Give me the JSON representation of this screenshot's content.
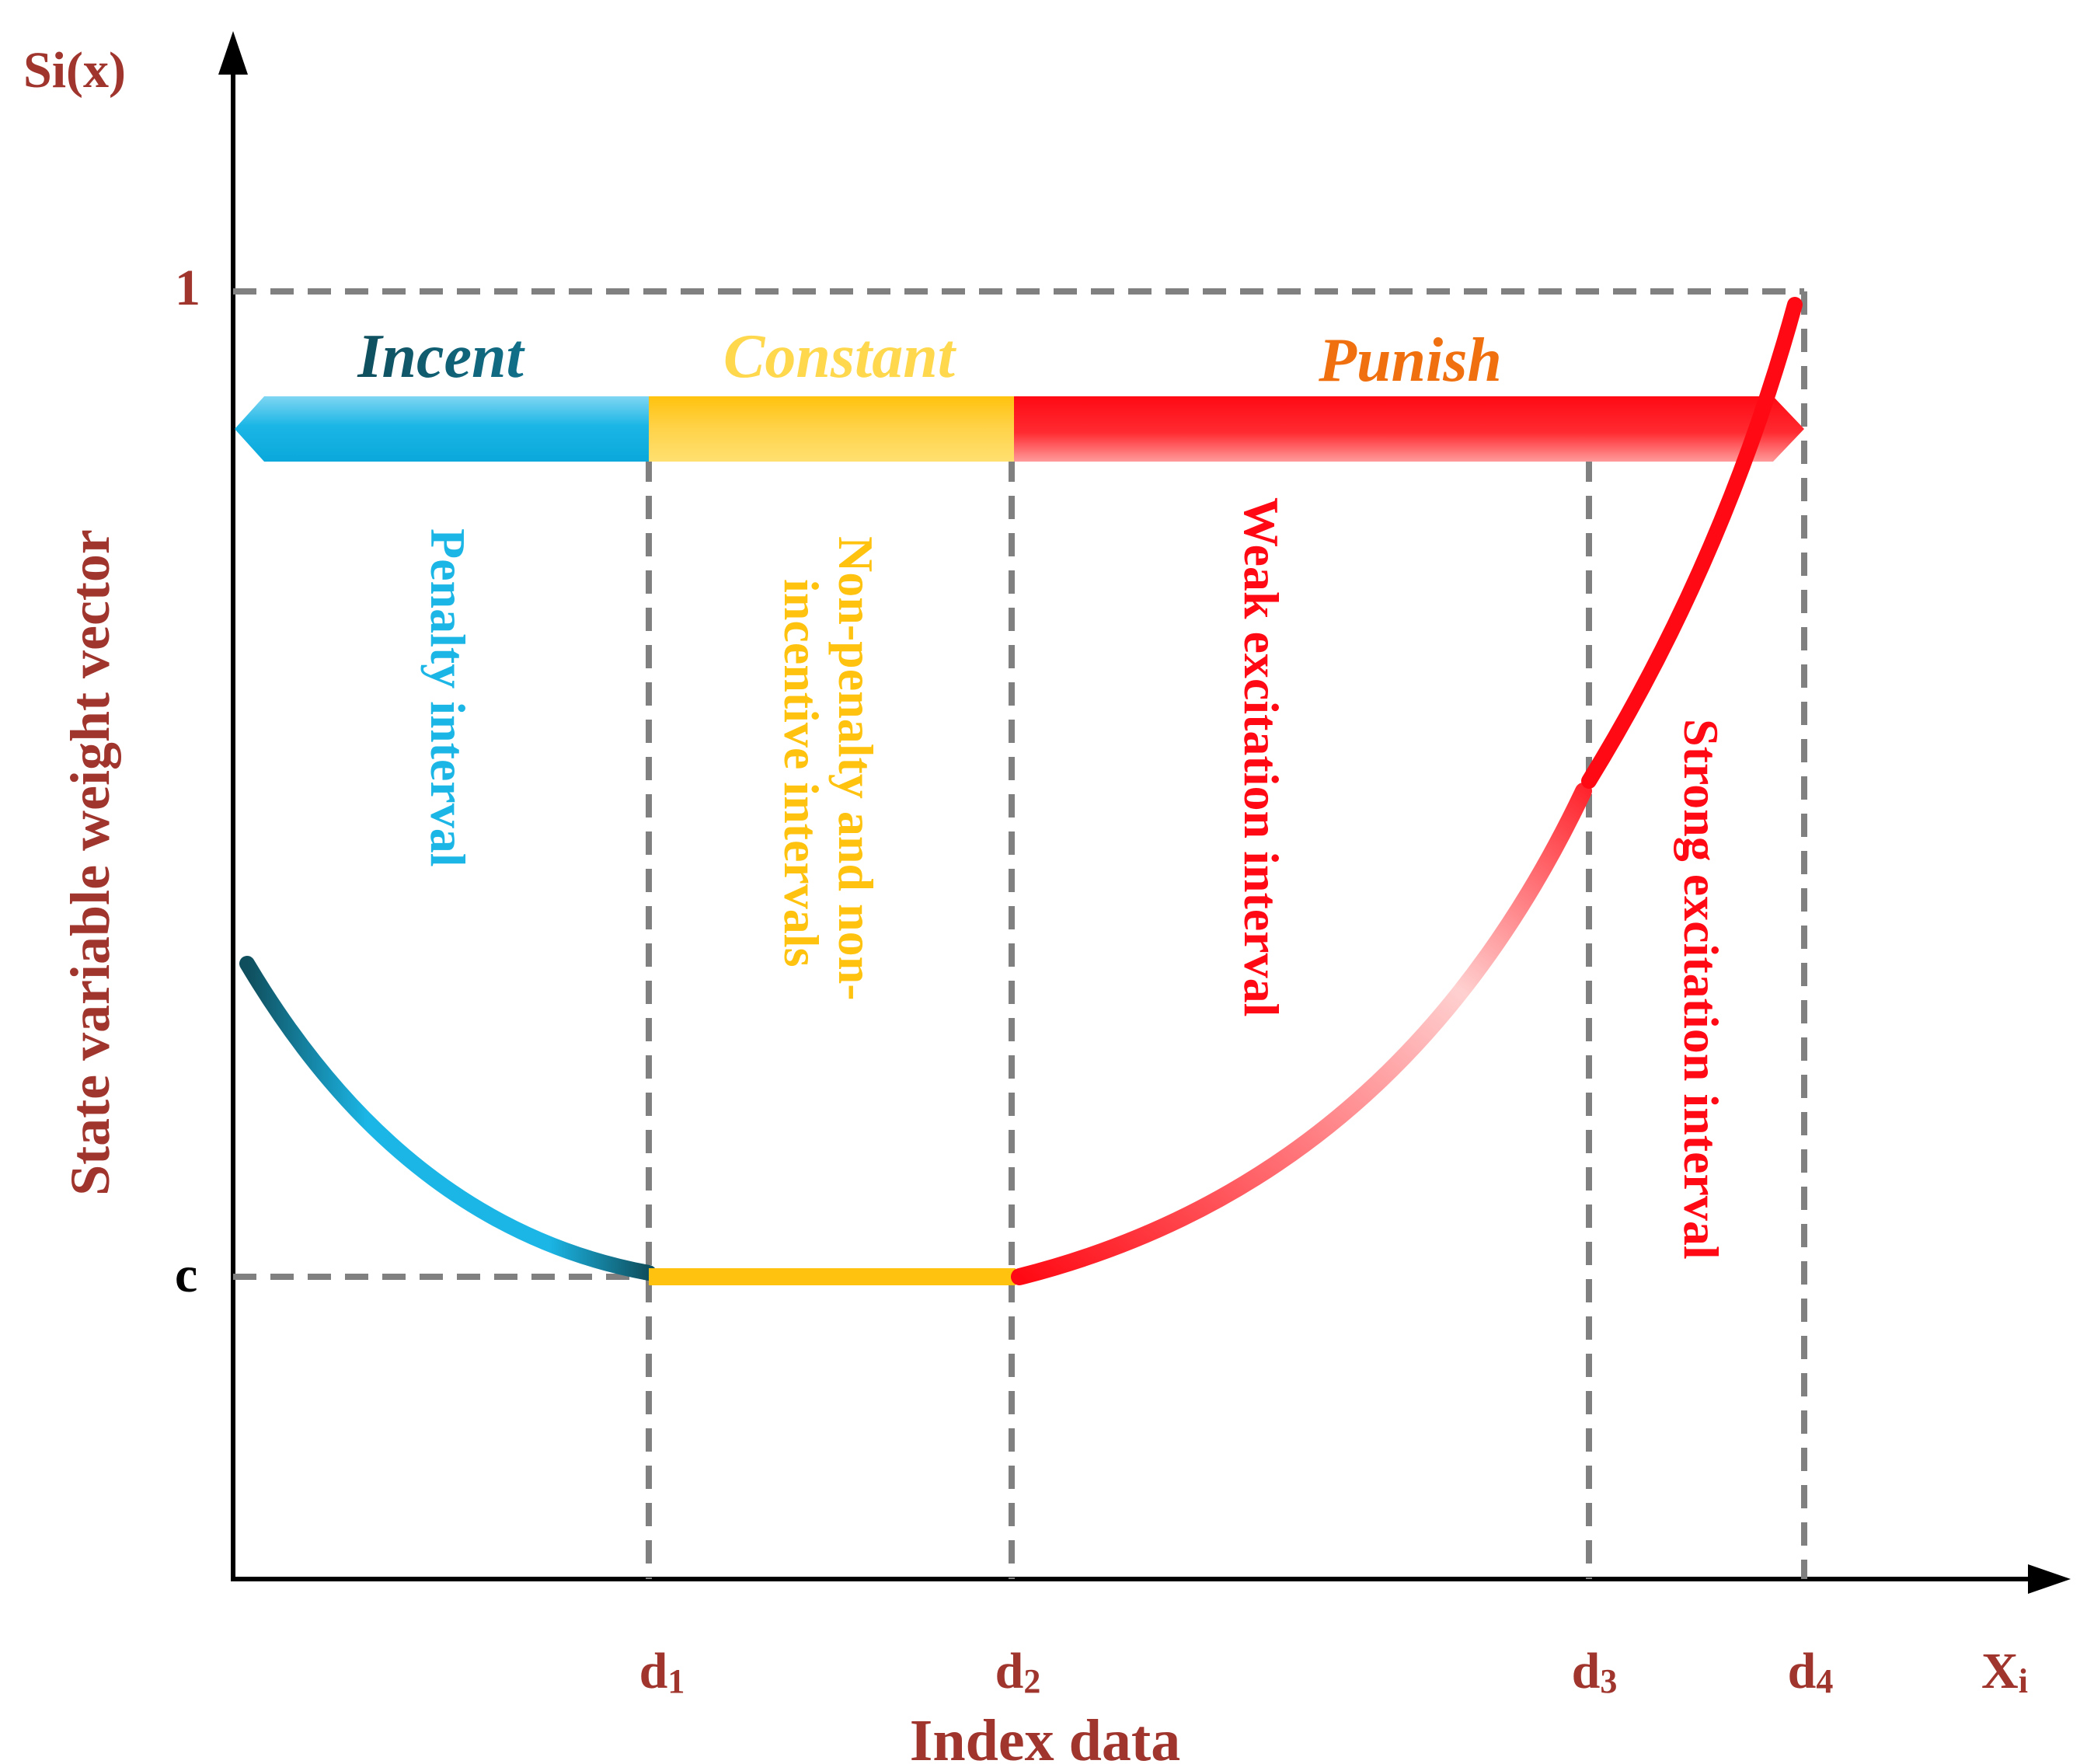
{
  "axes": {
    "y_axis_symbol": "Si(x)",
    "y_axis_label": "State variable weight vector",
    "x_axis_symbol_base": "X",
    "x_axis_symbol_sub": "i",
    "x_axis_label": "Index data",
    "y_tick_one": "1",
    "y_tick_c": "c",
    "x_ticks": [
      {
        "base": "d",
        "sub": "1"
      },
      {
        "base": "d",
        "sub": "2"
      },
      {
        "base": "d",
        "sub": "3"
      },
      {
        "base": "d",
        "sub": "4"
      }
    ]
  },
  "bands": {
    "incent": "Incent",
    "constant": "Constant",
    "punish": "Punish"
  },
  "intervals": {
    "penalty": [
      "Penalty interval"
    ],
    "neutral": [
      "Non-penalty and non-",
      "incentive intervals"
    ],
    "weak": [
      "Weak excitation interval"
    ],
    "strong": [
      "Strong excitation interval"
    ]
  },
  "colors": {
    "axis_text": "#A0352E",
    "incent_dark": "#0F4E5C",
    "incent_light": "#1BB6E6",
    "constant": "#FFC20E",
    "constant_light": "#FFE070",
    "punish": "#FF0A14",
    "punish_text": "#F07010",
    "guide": "#808080"
  }
}
